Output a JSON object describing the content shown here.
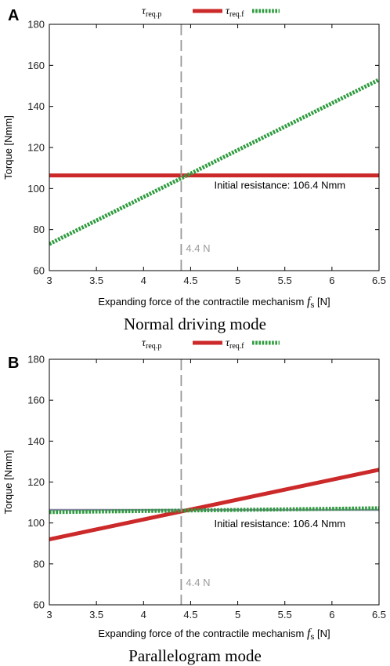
{
  "chart_data": [
    {
      "panel": "A",
      "type": "line",
      "title": "Normal driving mode",
      "xlabel": "Expanding force of the contractile mechanism ",
      "xlabel_symbol": "f",
      "xlabel_sub": "s",
      "xlabel_unit": " [N]",
      "ylabel": "Torque [Nmm]",
      "xlim": [
        3,
        6.5
      ],
      "ylim": [
        60,
        180
      ],
      "xticks": [
        "3",
        "3.5",
        "4",
        "4.5",
        "5",
        "5.5",
        "6",
        "6.5"
      ],
      "yticks": [
        "60",
        "80",
        "100",
        "120",
        "140",
        "160",
        "180"
      ],
      "grid": false,
      "legend_placement": "top-center",
      "series": [
        {
          "name": "τ",
          "sub": "req.p",
          "color": "#cc2a2a",
          "style": "solid",
          "x": [
            3,
            6.5
          ],
          "y": [
            106.4,
            106.4
          ]
        },
        {
          "name": "τ",
          "sub": "req.f",
          "color": "#2e9b3e",
          "style": "dotted",
          "x": [
            3,
            6.5
          ],
          "y": [
            73,
            153
          ]
        }
      ],
      "vline": {
        "x": 4.4,
        "label": "4.4 N"
      },
      "annotation": {
        "text": "Initial resistance: 106.4 Nmm",
        "x": 4.75,
        "y": 100
      }
    },
    {
      "panel": "B",
      "type": "line",
      "title": "Parallelogram mode",
      "xlabel": "Expanding force of the contractile mechanism ",
      "xlabel_symbol": "f",
      "xlabel_sub": "s",
      "xlabel_unit": " [N]",
      "ylabel": "Torque [Nmm]",
      "xlim": [
        3,
        6.5
      ],
      "ylim": [
        60,
        180
      ],
      "xticks": [
        "3",
        "3.5",
        "4",
        "4.5",
        "5",
        "5.5",
        "6",
        "6.5"
      ],
      "yticks": [
        "60",
        "80",
        "100",
        "120",
        "140",
        "160",
        "180"
      ],
      "grid": false,
      "legend_placement": "top-center",
      "series": [
        {
          "name": "τ",
          "sub": "req.p",
          "color": "#cc2a2a",
          "style": "solid",
          "x": [
            3,
            6.5
          ],
          "y": [
            92,
            126
          ]
        },
        {
          "name": "τ",
          "sub": "req.f",
          "color": "#2e9b3e",
          "style": "dotted",
          "x": [
            3,
            6.5
          ],
          "y": [
            105.3,
            107.2
          ]
        }
      ],
      "extra_lines": [
        {
          "color": "#8a8aa8",
          "x": [
            3,
            6.5
          ],
          "y": [
            106.4,
            106.4
          ]
        }
      ],
      "vline": {
        "x": 4.4,
        "label": "4.4 N"
      },
      "annotation": {
        "text": "Initial resistance: 106.4 Nmm",
        "x": 4.75,
        "y": 98
      }
    }
  ]
}
